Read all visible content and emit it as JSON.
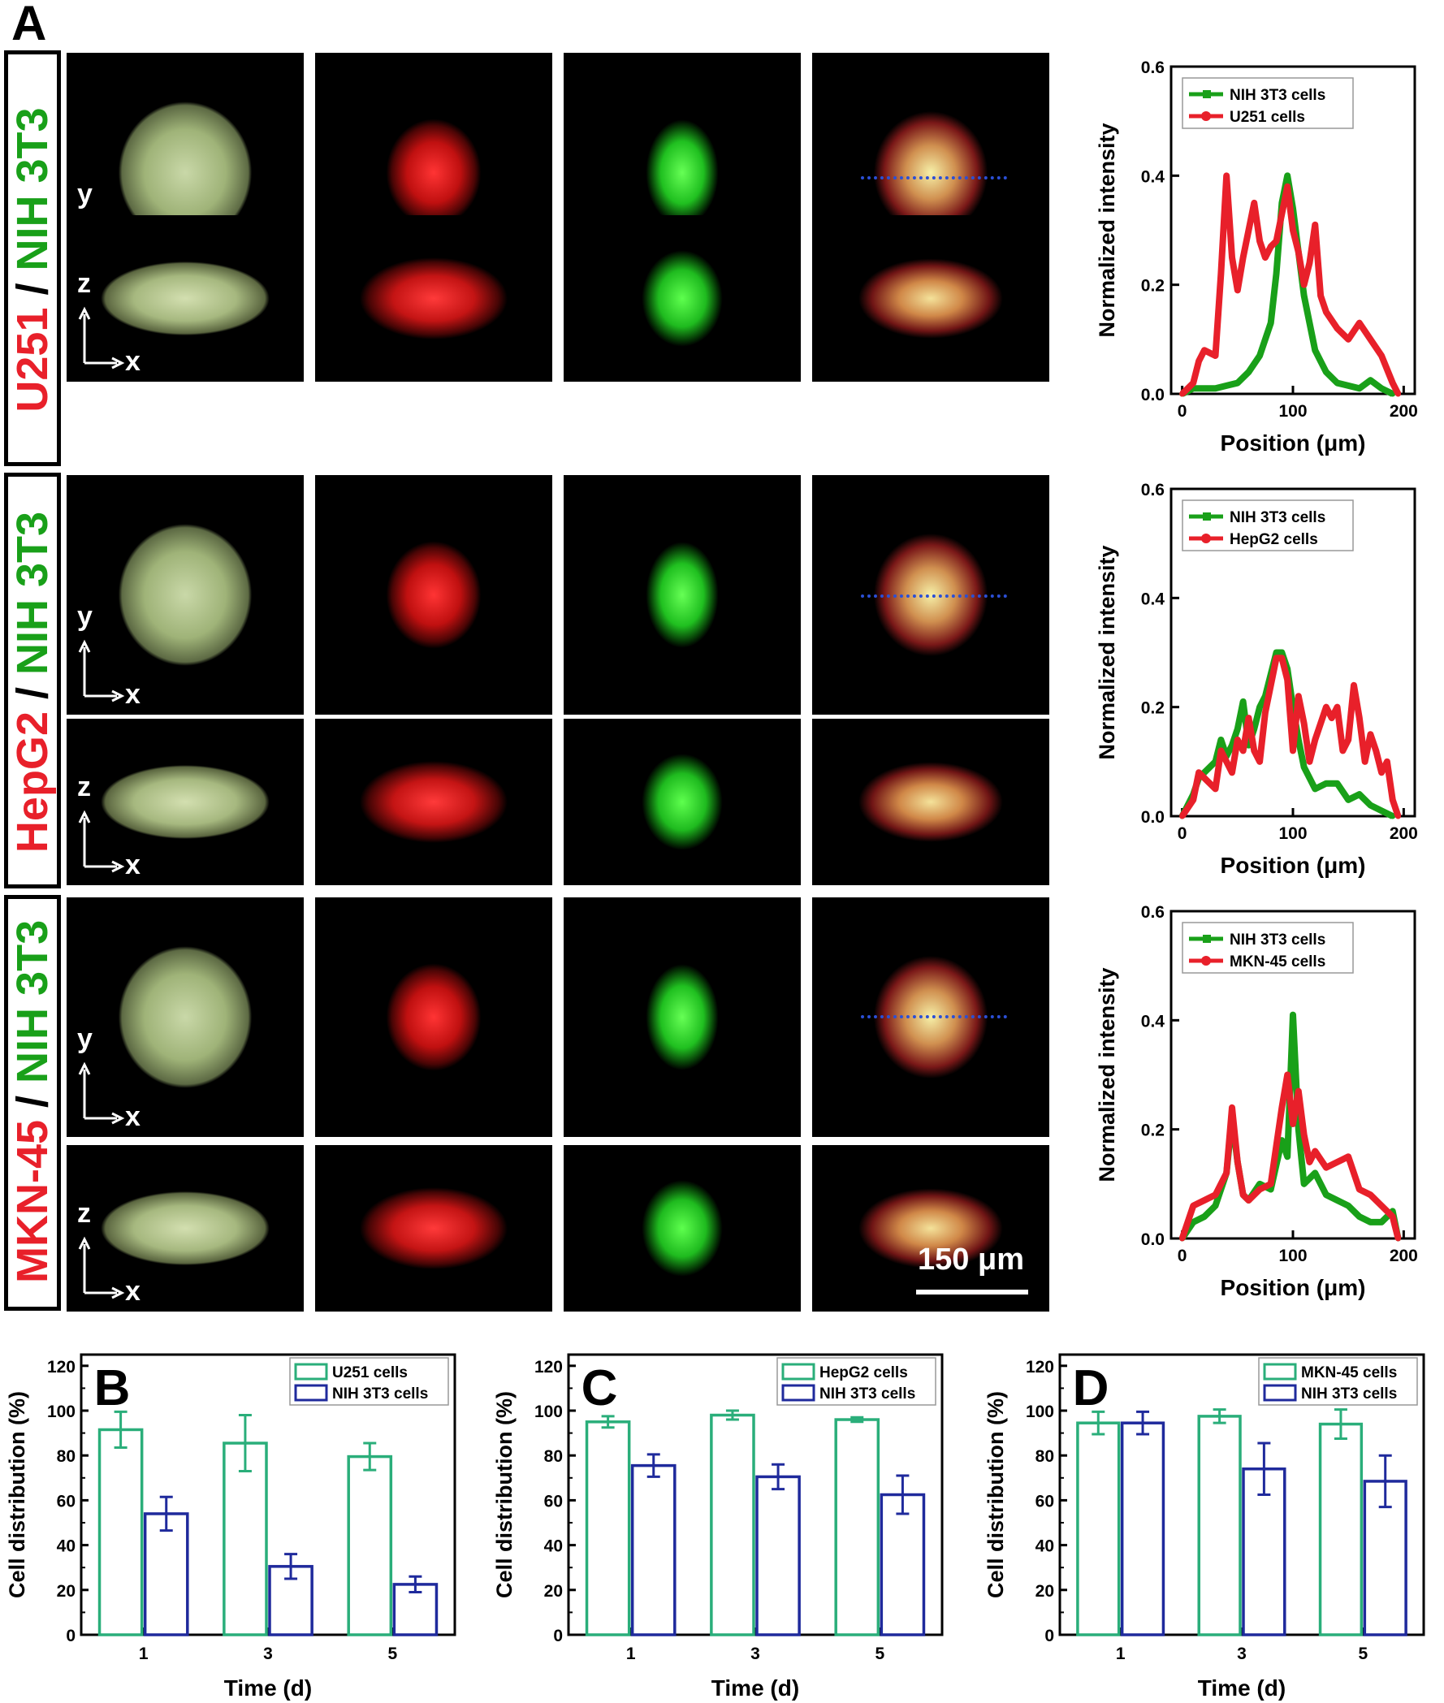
{
  "panel_labels": {
    "A": "A",
    "B": "B",
    "C": "C",
    "D": "D"
  },
  "rows": [
    {
      "red": "U251",
      "sep": " / ",
      "green": "NIH 3T3"
    },
    {
      "red": "HepG2",
      "sep": " / ",
      "green": "NIH 3T3"
    },
    {
      "red": "MKN-45",
      "sep": " / ",
      "green": "NIH 3T3"
    }
  ],
  "axes_markers": {
    "y": "y",
    "z": "z",
    "x": "x"
  },
  "scale_bar": "150 μm",
  "colors": {
    "red": "#e8202a",
    "green": "#19a019",
    "teal": "#2aae7a",
    "blue": "#1f2a9c",
    "dotted": "#2b4fd6"
  },
  "chart_data": [
    {
      "type": "line",
      "xlabel": "Position (μm)",
      "ylabel": "Normalized intensity",
      "xlim": [
        -10,
        210
      ],
      "ylim": [
        0,
        0.6
      ],
      "xticks": [
        "0",
        "100",
        "200"
      ],
      "yticks": [
        "0.0",
        "0.2",
        "0.4",
        "0.6"
      ],
      "legend": "top-left",
      "series": [
        {
          "name": "NIH 3T3 cells",
          "x": [
            0,
            10,
            20,
            30,
            40,
            50,
            60,
            70,
            80,
            85,
            90,
            95,
            100,
            105,
            110,
            120,
            130,
            140,
            150,
            160,
            170,
            180,
            190
          ],
          "y": [
            0,
            0.01,
            0.01,
            0.01,
            0.015,
            0.02,
            0.04,
            0.07,
            0.13,
            0.22,
            0.35,
            0.4,
            0.34,
            0.26,
            0.18,
            0.08,
            0.04,
            0.02,
            0.015,
            0.01,
            0.025,
            0.01,
            0
          ]
        },
        {
          "name": "U251 cells",
          "x": [
            0,
            10,
            15,
            20,
            30,
            35,
            40,
            45,
            50,
            55,
            60,
            65,
            70,
            75,
            80,
            85,
            90,
            95,
            100,
            105,
            110,
            115,
            120,
            125,
            130,
            140,
            150,
            160,
            170,
            180,
            190,
            195
          ],
          "y": [
            0,
            0.02,
            0.06,
            0.08,
            0.07,
            0.22,
            0.4,
            0.25,
            0.19,
            0.25,
            0.3,
            0.35,
            0.28,
            0.25,
            0.27,
            0.28,
            0.33,
            0.38,
            0.3,
            0.26,
            0.2,
            0.24,
            0.31,
            0.18,
            0.15,
            0.12,
            0.1,
            0.13,
            0.1,
            0.07,
            0.02,
            0
          ]
        }
      ]
    },
    {
      "type": "line",
      "xlabel": "Position (μm)",
      "ylabel": "Normalized intensity",
      "xlim": [
        -10,
        210
      ],
      "ylim": [
        0,
        0.6
      ],
      "xticks": [
        "0",
        "100",
        "200"
      ],
      "yticks": [
        "0.0",
        "0.2",
        "0.4",
        "0.6"
      ],
      "legend": "top-left",
      "series": [
        {
          "name": "NIH 3T3 cells",
          "x": [
            0,
            10,
            15,
            20,
            30,
            35,
            40,
            45,
            50,
            55,
            60,
            65,
            70,
            75,
            80,
            85,
            90,
            95,
            100,
            105,
            110,
            115,
            120,
            130,
            140,
            150,
            160,
            170,
            180,
            190
          ],
          "y": [
            0,
            0.04,
            0.07,
            0.08,
            0.1,
            0.14,
            0.11,
            0.13,
            0.16,
            0.21,
            0.13,
            0.16,
            0.2,
            0.22,
            0.26,
            0.3,
            0.3,
            0.27,
            0.2,
            0.14,
            0.09,
            0.07,
            0.05,
            0.06,
            0.06,
            0.03,
            0.04,
            0.02,
            0.01,
            0
          ]
        },
        {
          "name": "HepG2 cells",
          "x": [
            0,
            10,
            15,
            20,
            30,
            35,
            40,
            45,
            50,
            55,
            60,
            65,
            70,
            75,
            80,
            85,
            90,
            95,
            100,
            105,
            110,
            115,
            120,
            130,
            135,
            140,
            145,
            150,
            155,
            160,
            165,
            170,
            175,
            180,
            185,
            190,
            195
          ],
          "y": [
            0,
            0.03,
            0.08,
            0.07,
            0.05,
            0.12,
            0.1,
            0.08,
            0.14,
            0.12,
            0.18,
            0.12,
            0.1,
            0.19,
            0.24,
            0.29,
            0.29,
            0.25,
            0.12,
            0.22,
            0.17,
            0.1,
            0.14,
            0.2,
            0.18,
            0.2,
            0.12,
            0.14,
            0.24,
            0.18,
            0.1,
            0.15,
            0.12,
            0.08,
            0.1,
            0.03,
            0
          ]
        }
      ]
    },
    {
      "type": "line",
      "xlabel": "Position (μm)",
      "ylabel": "Normalized intensity",
      "xlim": [
        -10,
        210
      ],
      "ylim": [
        0,
        0.6
      ],
      "xticks": [
        "0",
        "100",
        "200"
      ],
      "yticks": [
        "0.0",
        "0.2",
        "0.4",
        "0.6"
      ],
      "legend": "top-left",
      "series": [
        {
          "name": "NIH 3T3 cells",
          "x": [
            0,
            10,
            20,
            30,
            40,
            45,
            50,
            55,
            60,
            70,
            80,
            90,
            95,
            100,
            105,
            110,
            120,
            130,
            140,
            150,
            160,
            170,
            180,
            190,
            195
          ],
          "y": [
            0,
            0.03,
            0.04,
            0.06,
            0.12,
            0.22,
            0.14,
            0.08,
            0.07,
            0.1,
            0.09,
            0.18,
            0.15,
            0.41,
            0.2,
            0.1,
            0.12,
            0.08,
            0.07,
            0.06,
            0.04,
            0.03,
            0.03,
            0.05,
            0
          ]
        },
        {
          "name": "MKN-45 cells",
          "x": [
            0,
            10,
            20,
            30,
            40,
            45,
            50,
            55,
            60,
            70,
            80,
            90,
            95,
            100,
            105,
            110,
            115,
            120,
            130,
            140,
            150,
            160,
            170,
            180,
            190,
            195
          ],
          "y": [
            0,
            0.06,
            0.07,
            0.08,
            0.12,
            0.24,
            0.14,
            0.08,
            0.07,
            0.09,
            0.1,
            0.24,
            0.3,
            0.21,
            0.27,
            0.19,
            0.14,
            0.16,
            0.13,
            0.14,
            0.15,
            0.09,
            0.08,
            0.06,
            0.04,
            0
          ]
        }
      ]
    },
    {
      "type": "bar",
      "categories": [
        "1",
        "3",
        "5"
      ],
      "xlabel": "Time (d)",
      "ylabel": "Cell distribution (%)",
      "ylim": [
        0,
        125
      ],
      "yticks": [
        "0",
        "20",
        "40",
        "60",
        "80",
        "100",
        "120"
      ],
      "legend": "top-right",
      "series": [
        {
          "name": "U251 cells",
          "values": [
            91.5,
            85.5,
            79.5
          ],
          "err": [
            8,
            12.5,
            6
          ]
        },
        {
          "name": "NIH 3T3 cells",
          "values": [
            54,
            30.5,
            22.5
          ],
          "err": [
            7.5,
            5.5,
            3.5
          ]
        }
      ]
    },
    {
      "type": "bar",
      "categories": [
        "1",
        "3",
        "5"
      ],
      "xlabel": "Time (d)",
      "ylabel": "Cell distribution (%)",
      "ylim": [
        0,
        125
      ],
      "yticks": [
        "0",
        "20",
        "40",
        "60",
        "80",
        "100",
        "120"
      ],
      "legend": "top-right",
      "series": [
        {
          "name": "HepG2 cells",
          "values": [
            95,
            98,
            96
          ],
          "err": [
            2.5,
            2,
            1
          ]
        },
        {
          "name": "NIH 3T3 cells",
          "values": [
            75.5,
            70.5,
            62.5
          ],
          "err": [
            5,
            5.5,
            8.5
          ]
        }
      ]
    },
    {
      "type": "bar",
      "categories": [
        "1",
        "3",
        "5"
      ],
      "xlabel": "Time (d)",
      "ylabel": "Cell distribution (%)",
      "ylim": [
        0,
        125
      ],
      "yticks": [
        "0",
        "20",
        "40",
        "60",
        "80",
        "100",
        "120"
      ],
      "legend": "top-right",
      "series": [
        {
          "name": "MKN-45 cells",
          "values": [
            94.5,
            97.5,
            94
          ],
          "err": [
            5,
            3,
            6.5
          ]
        },
        {
          "name": "NIH 3T3 cells",
          "values": [
            94.5,
            74,
            68.5
          ],
          "err": [
            5,
            11.5,
            11.5
          ]
        }
      ]
    }
  ]
}
